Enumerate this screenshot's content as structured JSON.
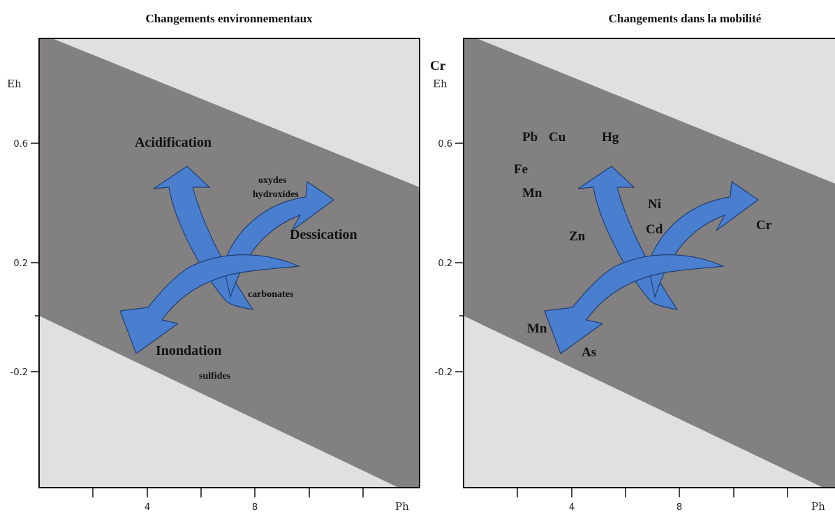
{
  "left_panel": {
    "title": "Changements environnementaux",
    "ylabel": "Eh",
    "xlabel": "Ph",
    "y_ticks": [
      "0.6",
      "0.2",
      "-0.2"
    ],
    "x_ticks": [
      "4",
      "8"
    ],
    "labels": {
      "acidification": "Acidification",
      "oxydes": "oxydes",
      "hydroxides": "hydroxides",
      "dessication": "Dessication",
      "carbonates": "carbonates",
      "inondation": "Inondation",
      "sulfides": "sulfides"
    }
  },
  "right_panel": {
    "title": "Changements dans la mobilité",
    "ylabel": "Eh",
    "xlabel": "Ph",
    "y_ticks": [
      "0.6",
      "0.2",
      "-0.2"
    ],
    "x_ticks": [
      "4",
      "8"
    ],
    "elements": {
      "cr_top": "Cr",
      "pb": "Pb",
      "cu": "Cu",
      "hg": "Hg",
      "fe": "Fe",
      "mn_upper": "Mn",
      "ni": "Ni",
      "cd": "Cd",
      "zn": "Zn",
      "cr_right": "Cr",
      "mn_lower": "Mn",
      "as": "As"
    }
  },
  "colors": {
    "band": "#828080",
    "background": "#e0e0e0",
    "arrow_fill": "#4a7fcf",
    "arrow_stroke": "#1f3f78"
  }
}
